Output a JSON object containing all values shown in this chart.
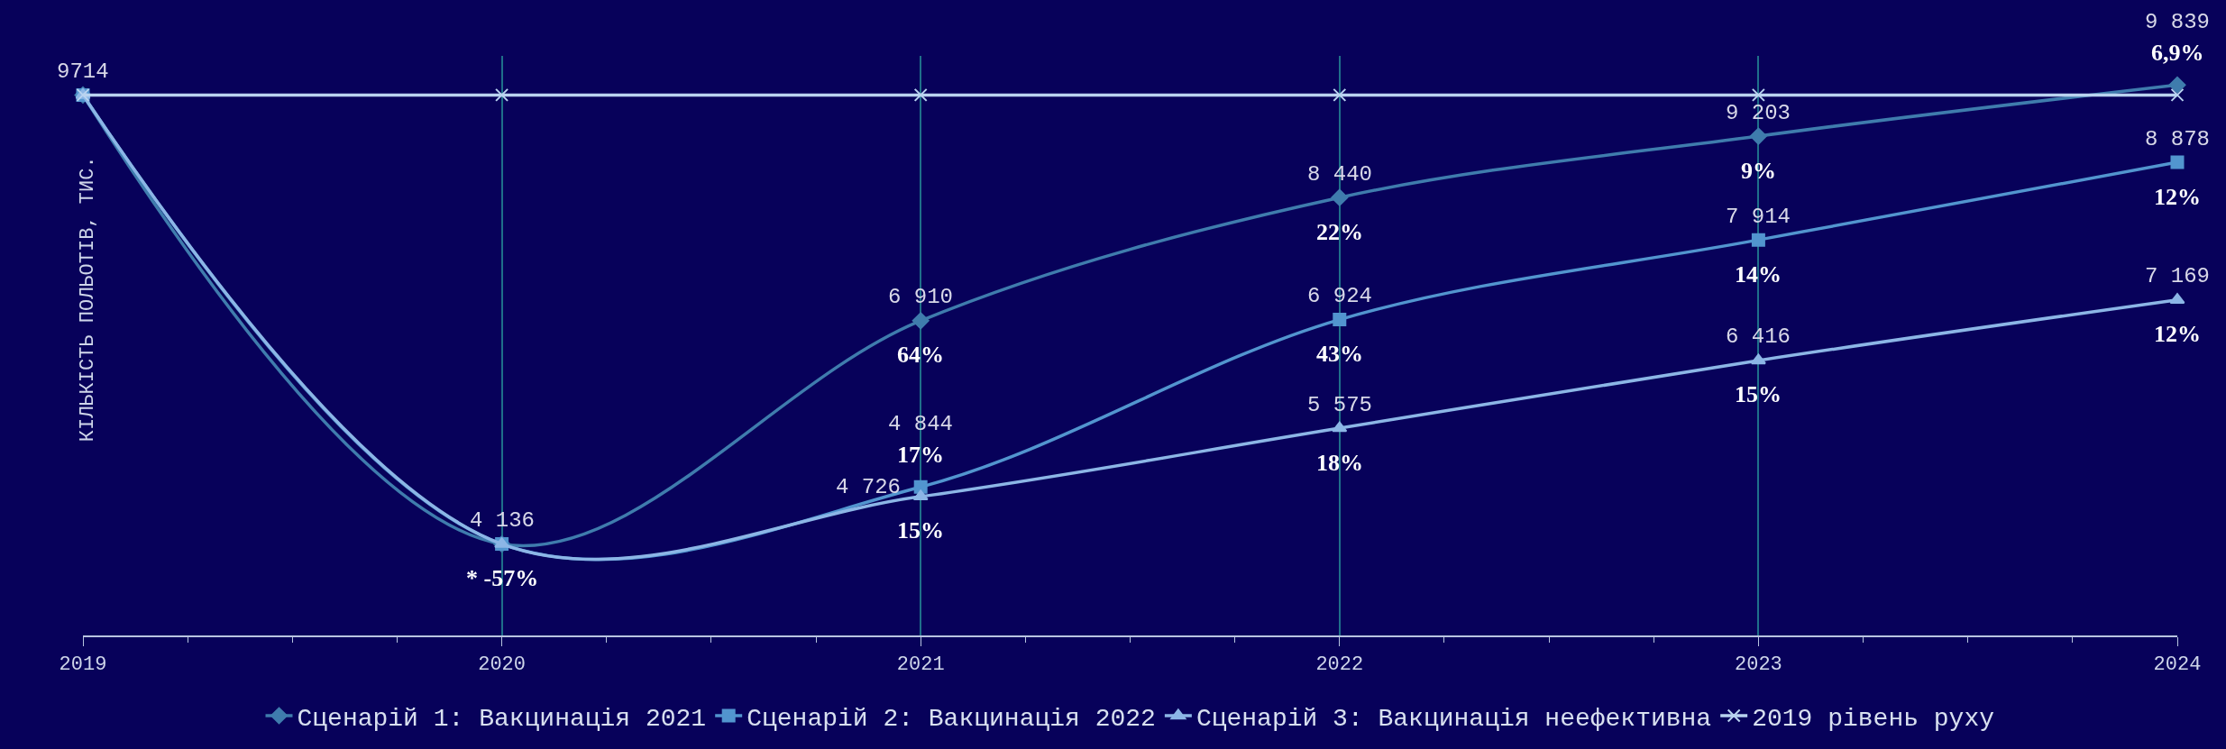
{
  "chart_data": {
    "type": "line",
    "ylabel": "КІЛЬКІСТЬ ПОЛЬОТІВ, ТИС.",
    "x": [
      2019,
      2020,
      2021,
      2022,
      2023,
      2024
    ],
    "xlim": [
      2019,
      2024
    ],
    "xticks": [
      2019,
      2020,
      2021,
      2022,
      2023,
      2024
    ],
    "ylim": [
      3000,
      10200
    ],
    "tick_labels": "x",
    "grid": "x",
    "legend": "bottom",
    "series": [
      {
        "name": "Сценарій 1: Вакцинація 2021",
        "color": "#3f7cad",
        "marker": "diamond",
        "values": [
          9714,
          4136,
          6910,
          8440,
          9203,
          9839
        ],
        "value_labels": [
          null,
          "4 136",
          "6 910",
          "8 440",
          "9 203",
          "9 839"
        ]
      },
      {
        "name": "Сценарій 2: Вакцинація 2022",
        "color": "#5295cf",
        "marker": "square",
        "values": [
          9714,
          4136,
          4844,
          6924,
          7914,
          8878
        ],
        "value_labels": [
          null,
          null,
          "4 844",
          "6 924",
          "7 914",
          "8 878"
        ]
      },
      {
        "name": "Сценарій 3: Вакцинація неефективна",
        "color": "#8cb6e6",
        "marker": "triangle",
        "values": [
          9714,
          4136,
          4726,
          5575,
          6416,
          7169
        ],
        "value_labels": [
          null,
          null,
          "4 726",
          "5 575",
          "6 416",
          "7 169"
        ]
      },
      {
        "name": "2019 рівень руху",
        "color": "#b9d3f0",
        "marker": "cross",
        "values": [
          9714,
          9714,
          9714,
          9714,
          9714,
          9714
        ],
        "value_labels": [
          "9714",
          null,
          null,
          null,
          null,
          null
        ]
      }
    ],
    "annotations": [
      {
        "text": "* -57%",
        "x": 2020,
        "y": 4136
      },
      {
        "text": "64%",
        "x": 2021,
        "y": 6910
      },
      {
        "text": "22%",
        "x": 2022,
        "y": 8440
      },
      {
        "text": "9%",
        "x": 2023,
        "y": 9203
      },
      {
        "text": "6,9%",
        "x": 2024,
        "y": 9839
      },
      {
        "text": "17%",
        "x": 2021,
        "y": 4844
      },
      {
        "text": "43%",
        "x": 2022,
        "y": 6924
      },
      {
        "text": "14%",
        "x": 2023,
        "y": 7914
      },
      {
        "text": "12%",
        "x": 2024,
        "y": 8878
      },
      {
        "text": "15%",
        "x": 2021,
        "y": 4726
      },
      {
        "text": "18%",
        "x": 2022,
        "y": 5575
      },
      {
        "text": "15%",
        "x": 2023,
        "y": 6416
      },
      {
        "text": "12%",
        "x": 2024,
        "y": 7169
      }
    ]
  }
}
